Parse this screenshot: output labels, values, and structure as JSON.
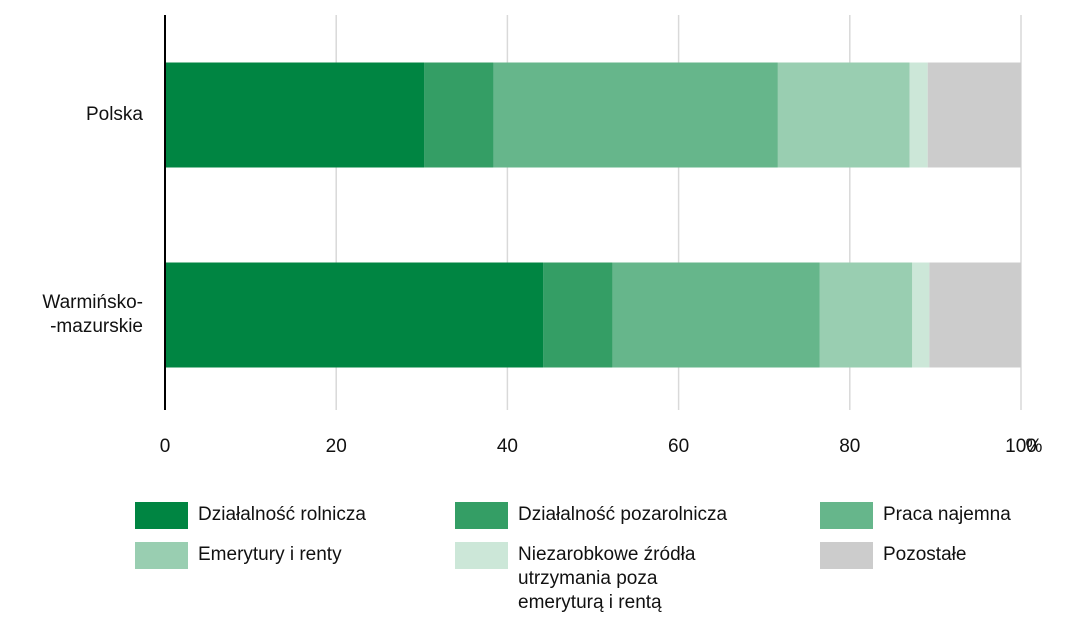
{
  "chart_data": {
    "type": "stacked_barh",
    "categories": [
      "Polska",
      "Warmińsko-\n-mazurskie"
    ],
    "series": [
      {
        "name": "Działalność rolnicza",
        "color": "#008542",
        "values": [
          30.3,
          44.2
        ]
      },
      {
        "name": "Działalność pozarolnicza",
        "color": "#349e65",
        "values": [
          8.1,
          8.1
        ]
      },
      {
        "name": "Praca najemna",
        "color": "#66b68b",
        "values": [
          33.2,
          24.2
        ]
      },
      {
        "name": "Emerytury i renty",
        "color": "#99ceb1",
        "values": [
          15.4,
          10.8
        ]
      },
      {
        "name": "Niezarobkowe źródła\nutrzymania poza\nemeryturą i rentą",
        "color": "#cce7d8",
        "values": [
          2.1,
          2.0
        ]
      },
      {
        "name": "Pozostałe",
        "color": "#cccccc",
        "values": [
          10.9,
          10.7
        ]
      }
    ],
    "xlim": [
      0,
      100
    ],
    "xticks": [
      0,
      20,
      40,
      60,
      80,
      100
    ],
    "x_unit": "%",
    "grid": true
  }
}
